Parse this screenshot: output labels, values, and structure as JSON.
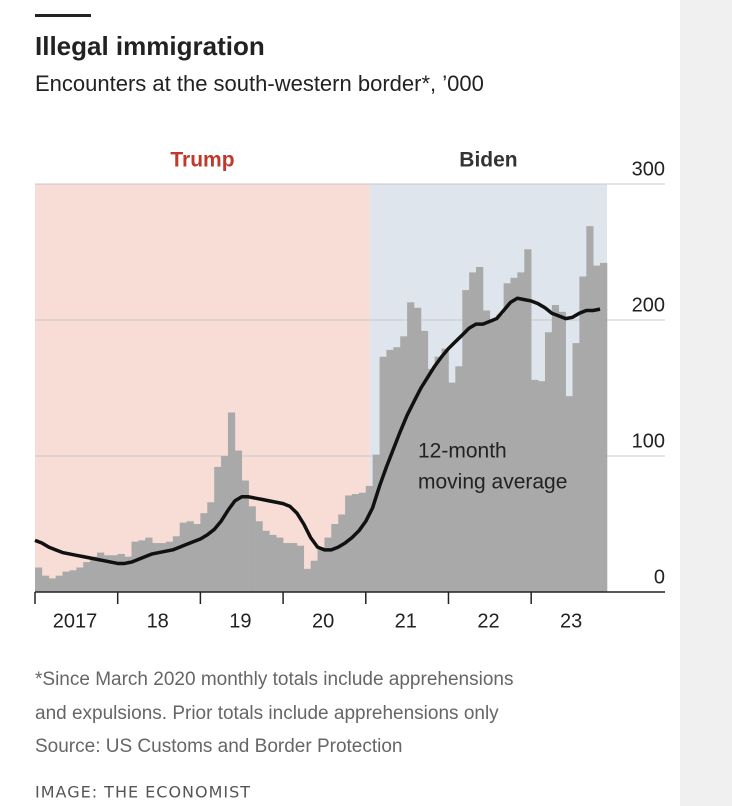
{
  "header": {
    "title": "Illegal immigration",
    "subtitle": "Encounters at the south-western border*, ’000"
  },
  "chart_data": {
    "type": "bar",
    "x": [
      2017,
      2017.083,
      2017.167,
      2017.25,
      2017.333,
      2017.417,
      2017.5,
      2017.583,
      2017.667,
      2017.75,
      2017.833,
      2017.917,
      2018,
      2018.083,
      2018.167,
      2018.25,
      2018.333,
      2018.417,
      2018.5,
      2018.583,
      2018.667,
      2018.75,
      2018.833,
      2018.917,
      2019,
      2019.083,
      2019.167,
      2019.25,
      2019.333,
      2019.417,
      2019.5,
      2019.583,
      2019.667,
      2019.75,
      2019.833,
      2019.917,
      2020,
      2020.083,
      2020.167,
      2020.25,
      2020.333,
      2020.417,
      2020.5,
      2020.583,
      2020.667,
      2020.75,
      2020.833,
      2020.917,
      2021,
      2021.083,
      2021.167,
      2021.25,
      2021.333,
      2021.417,
      2021.5,
      2021.583,
      2021.667,
      2021.75,
      2021.833,
      2021.917,
      2022,
      2022.083,
      2022.167,
      2022.25,
      2022.333,
      2022.417,
      2022.5,
      2022.583,
      2022.667,
      2022.75,
      2022.833,
      2022.917,
      2023,
      2023.083,
      2023.167,
      2023.25,
      2023.333,
      2023.417,
      2023.5,
      2023.583,
      2023.667,
      2023.75,
      2023.833
    ],
    "series": [
      {
        "type": "bar",
        "color": "#a9a9a9",
        "values": [
          18,
          12,
          10,
          12,
          15,
          16,
          18,
          22,
          26,
          29,
          27,
          27,
          28,
          26,
          37,
          38,
          40,
          36,
          36,
          37,
          41,
          51,
          52,
          50,
          58,
          66,
          92,
          100,
          132,
          104,
          82,
          63,
          52,
          45,
          42,
          40,
          36,
          36,
          34,
          17,
          23,
          33,
          40,
          50,
          57,
          71,
          72,
          73,
          78,
          101,
          173,
          178,
          180,
          188,
          213,
          209,
          192,
          164,
          173,
          179,
          154,
          166,
          222,
          235,
          239,
          207,
          199,
          204,
          227,
          231,
          235,
          252,
          156,
          155,
          191,
          211,
          206,
          144,
          183,
          232,
          269,
          240,
          242
        ]
      },
      {
        "type": "line",
        "color": "#111111",
        "values": [
          38,
          36,
          33,
          31,
          29,
          28,
          27,
          26,
          25,
          24,
          23,
          22,
          21,
          21,
          22,
          24,
          26,
          28,
          29,
          30,
          31,
          33,
          35,
          37,
          39,
          42,
          46,
          52,
          60,
          67,
          70,
          70,
          69,
          68,
          67,
          66,
          65,
          63,
          58,
          50,
          40,
          33,
          31,
          31,
          33,
          36,
          40,
          45,
          52,
          62,
          78,
          92,
          105,
          118,
          130,
          140,
          150,
          158,
          166,
          173,
          179,
          184,
          189,
          194,
          197,
          197,
          199,
          201,
          207,
          213,
          216,
          215,
          214,
          212,
          209,
          205,
          203,
          201,
          202,
          205,
          207,
          207,
          208
        ]
      }
    ],
    "periods": [
      {
        "label": "Trump",
        "start": 2017,
        "end": 2021.05,
        "color": "#f8ddd6",
        "label_color": "#c0392b"
      },
      {
        "label": "Biden",
        "start": 2021.05,
        "end": 2023.917,
        "color": "#dfe5ec",
        "label_color": "#333333"
      }
    ],
    "annotation": [
      "12-month",
      "moving average"
    ],
    "xlim": [
      2017,
      2023.917
    ],
    "xticks": [
      {
        "value": 2017,
        "label": "2017"
      },
      {
        "value": 2018,
        "label": "18"
      },
      {
        "value": 2019,
        "label": "19"
      },
      {
        "value": 2020,
        "label": "20"
      },
      {
        "value": 2021,
        "label": "21"
      },
      {
        "value": 2022,
        "label": "22"
      },
      {
        "value": 2023,
        "label": "23"
      }
    ],
    "ylim": [
      0,
      300
    ],
    "yticks": [
      0,
      100,
      200,
      300
    ],
    "grid": true
  },
  "footnote": [
    "*Since March 2020 monthly totals include apprehensions",
    "and expulsions. Prior totals include apprehensions only",
    "Source: US Customs and Border Protection"
  ],
  "credit": "IMAGE: THE ECONOMIST"
}
